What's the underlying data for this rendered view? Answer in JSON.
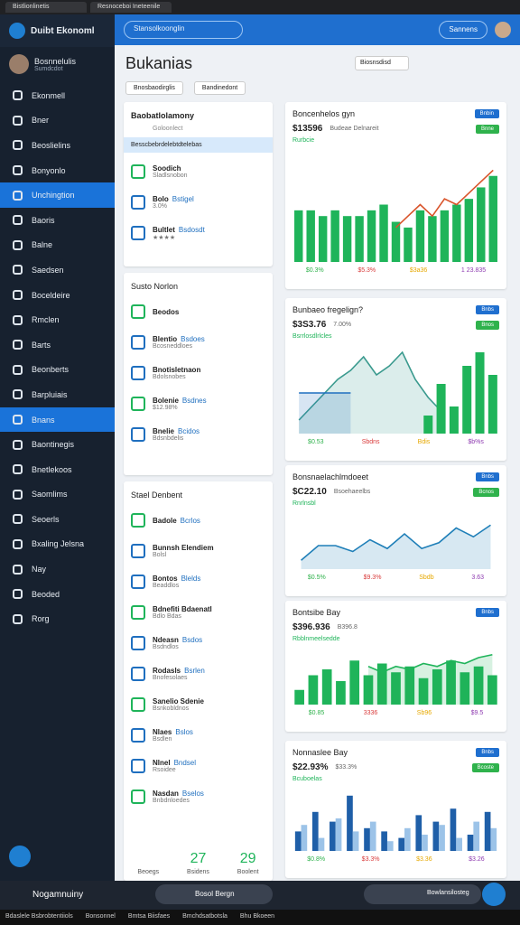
{
  "tabs": [
    "Bistlionlinetis",
    "Resnoceboi Ineteenile"
  ],
  "sidebar": {
    "brand": "Duibt Ekonoml",
    "user": {
      "name": "Bosnnelulis",
      "role": "Sumdcdot"
    },
    "nav": [
      "Ekonmell",
      "Bner",
      "Beoslielins",
      "Bonyonlo",
      "Unchingtion",
      "Baoris",
      "Balne",
      "Saedsen",
      "Boceldeire",
      "Rmclen",
      "Barts",
      "Beonberts",
      "Barpluiais",
      "Bnans",
      "Baontinegis",
      "Bnetlekoos",
      "Saomlims",
      "Seoerls",
      "Bxaling Jelsna",
      "Nay",
      "Beoded",
      "Rorg"
    ],
    "active": [
      4,
      13
    ]
  },
  "header": {
    "search": "Stansolkoonglin",
    "button": "Sannens"
  },
  "page": {
    "title": "Bukanias",
    "dropdown": "Biosnsdisd",
    "filters": [
      "Bnosbaodirglis",
      "Bandinedont"
    ]
  },
  "list1": {
    "title": "Baobatlolamony",
    "sub": "Goloonlect",
    "highlight": "Besscbebrdelebtdtelebas",
    "items": [
      {
        "title": "Soodich",
        "sub": "Sladlsnobon"
      },
      {
        "title": "Bolo",
        "tag": "Bstigel",
        "sub": "3.0%"
      },
      {
        "title": "Bultlet",
        "tag": "Bsdosdt",
        "sub": "★★★★"
      }
    ]
  },
  "list2": {
    "title": "Susto Norlon",
    "items": [
      {
        "title": "Beodos",
        "sub": ""
      },
      {
        "title": "Blentio",
        "tag": "Bsdoes",
        "sub": "Bcosneddloes"
      },
      {
        "title": "Bnotisletnaon",
        "sub": "Bdolsnobes"
      },
      {
        "title": "Bolenie",
        "tag": "Bsdnes",
        "sub": "$12.98%"
      },
      {
        "title": "Bnelie",
        "tag": "Bcidos",
        "sub": "Bdsnbdelis"
      }
    ]
  },
  "list3": {
    "title": "Stael Denbent",
    "items": [
      {
        "title": "Badole",
        "tag": "Bcrlos",
        "sub": ""
      },
      {
        "title": "Bunnsh Elendiem",
        "sub": "Bolsl"
      },
      {
        "title": "Bontos",
        "tag": "Blelds",
        "sub": "Beaddlos"
      },
      {
        "title": "Bdnefiti Bdaenatl",
        "sub": "Bdlo Bdas"
      },
      {
        "title": "Ndeasn",
        "tag": "Bsdos",
        "sub": "Bsdndlos"
      },
      {
        "title": "Rodasls",
        "tag": "Bsrlen",
        "sub": "Bnofesolaes"
      },
      {
        "title": "Sanelio Sdenie",
        "sub": "Bsnkobldnos"
      },
      {
        "title": "Nlaes",
        "tag": "Bslos",
        "sub": "Bsdlen"
      },
      {
        "title": "Nlnel",
        "tag": "Bndsel",
        "sub": "Rsoidee"
      },
      {
        "title": "Nasdan",
        "tag": "Bselos",
        "sub": "Bnbdnloedes"
      }
    ]
  },
  "footer_stats": [
    {
      "value": "",
      "label": "Beoegs"
    },
    {
      "value": "27",
      "label": "Bsidens"
    },
    {
      "value": "29",
      "label": "Boolent"
    }
  ],
  "charts": [
    {
      "title": "Boncenhelos gyn",
      "badge": "Bnbin",
      "sub": "Rurbcie",
      "kpi": "$13596",
      "kpi_note": "Budeae Delnareit",
      "tag": "Bnne",
      "ylim": [
        0,
        20
      ],
      "series": [
        {
          "kind": "bar",
          "color": "#1fb45a",
          "values": [
            9,
            9,
            8,
            9,
            8,
            8,
            9,
            10,
            7,
            6,
            9,
            8,
            9,
            10,
            11,
            13,
            15
          ]
        },
        {
          "kind": "line",
          "color": "#d9542b",
          "values": [
            null,
            null,
            null,
            null,
            null,
            null,
            null,
            null,
            6,
            8,
            10,
            8,
            11,
            10,
            12,
            14,
            16
          ]
        }
      ],
      "stats": [
        "$0.3%",
        "$5.3%",
        "$3a36",
        "1 23.835"
      ]
    },
    {
      "title": "Bunbaeo fregelign?",
      "badge": "Bnbs",
      "sub": "Bsrrlosdlrlcles",
      "kpi": "$3S3.76",
      "kpi_note": "7.00%",
      "tag": "Bnos",
      "ylim": [
        0,
        20
      ],
      "series": [
        {
          "kind": "area",
          "color": "#3a9a8e",
          "values": [
            3,
            6,
            9,
            12,
            14,
            17,
            13,
            15,
            18,
            12,
            8,
            5,
            null,
            null,
            null,
            null
          ]
        },
        {
          "kind": "area",
          "color": "#1f6fbf",
          "values": [
            9,
            9,
            9,
            9,
            9,
            null,
            null,
            null,
            null,
            null,
            null,
            null,
            null,
            null,
            null,
            null
          ]
        },
        {
          "kind": "bar",
          "color": "#1fb45a",
          "values": [
            null,
            null,
            null,
            null,
            null,
            null,
            null,
            null,
            null,
            null,
            4,
            11,
            6,
            15,
            18,
            13
          ]
        }
      ],
      "stats": [
        "$0.53",
        "Sbdns",
        "Bdis",
        "$b%s"
      ]
    },
    {
      "title": "Bonsnaelachlmdoeet",
      "badge": "Bnbs",
      "sub": "Rnrlnsbl",
      "kpi": "$C22.10",
      "kpi_note": "Bsoehaeelbs",
      "tag": "Bcnos",
      "ylim": [
        0,
        20
      ],
      "series": [
        {
          "kind": "area",
          "color": "#1f7fb8",
          "values": [
            3,
            8,
            8,
            6,
            10,
            7,
            12,
            7,
            9,
            14,
            11,
            15
          ]
        }
      ],
      "stats": [
        "$0.5%",
        "$9.3%",
        "Sbdb",
        "3.63"
      ]
    },
    {
      "title": "Bontsibe Bay",
      "badge": "Bnbs",
      "sub": "Rbblnmeelsedde",
      "kpi": "$396.936",
      "kpi_note": "B396.8",
      "tag": "",
      "ylim": [
        0,
        20
      ],
      "series": [
        {
          "kind": "bar",
          "color": "#1fb45a",
          "values": [
            5,
            10,
            12,
            8,
            15,
            10,
            14,
            11,
            13,
            9,
            12,
            15,
            11,
            13,
            10
          ]
        },
        {
          "kind": "area",
          "color": "#1fb45a",
          "values": [
            null,
            null,
            null,
            null,
            null,
            13,
            11,
            13,
            12,
            14,
            13,
            15,
            14,
            16,
            17
          ]
        }
      ],
      "stats": [
        "$0.85",
        "3336",
        "Sb96",
        "$9.5"
      ]
    },
    {
      "title": "Nonnaslee Bay",
      "badge": "Bnbs",
      "sub": "Bcuboelas",
      "kpi": "$22.93%",
      "kpi_note": "$33.3%",
      "tag": "Bcoste",
      "ylim": [
        0,
        20
      ],
      "series": [
        {
          "kind": "bar",
          "color": "#1f5fa8",
          "values": [
            6,
            12,
            9,
            17,
            7,
            6,
            4,
            11,
            9,
            13,
            5,
            12
          ]
        },
        {
          "kind": "bar",
          "color": "#9cc3e8",
          "values": [
            8,
            4,
            10,
            6,
            9,
            3,
            7,
            5,
            8,
            4,
            9,
            7
          ]
        }
      ],
      "stats": [
        "$0.8%",
        "$3.3%",
        "$3.36",
        "$3.26"
      ]
    }
  ],
  "taskbar": {
    "user": "Nogamnuiny",
    "search": "Bosol Bergn",
    "pill": "Bowlansilosteg",
    "strip": [
      "Bdaslele Bsbrobtentiiols",
      "Bonsonnel",
      "Bmtsa Biisfaes",
      "Bmchdsatbotsla",
      "Bhu Bkoeen"
    ]
  }
}
